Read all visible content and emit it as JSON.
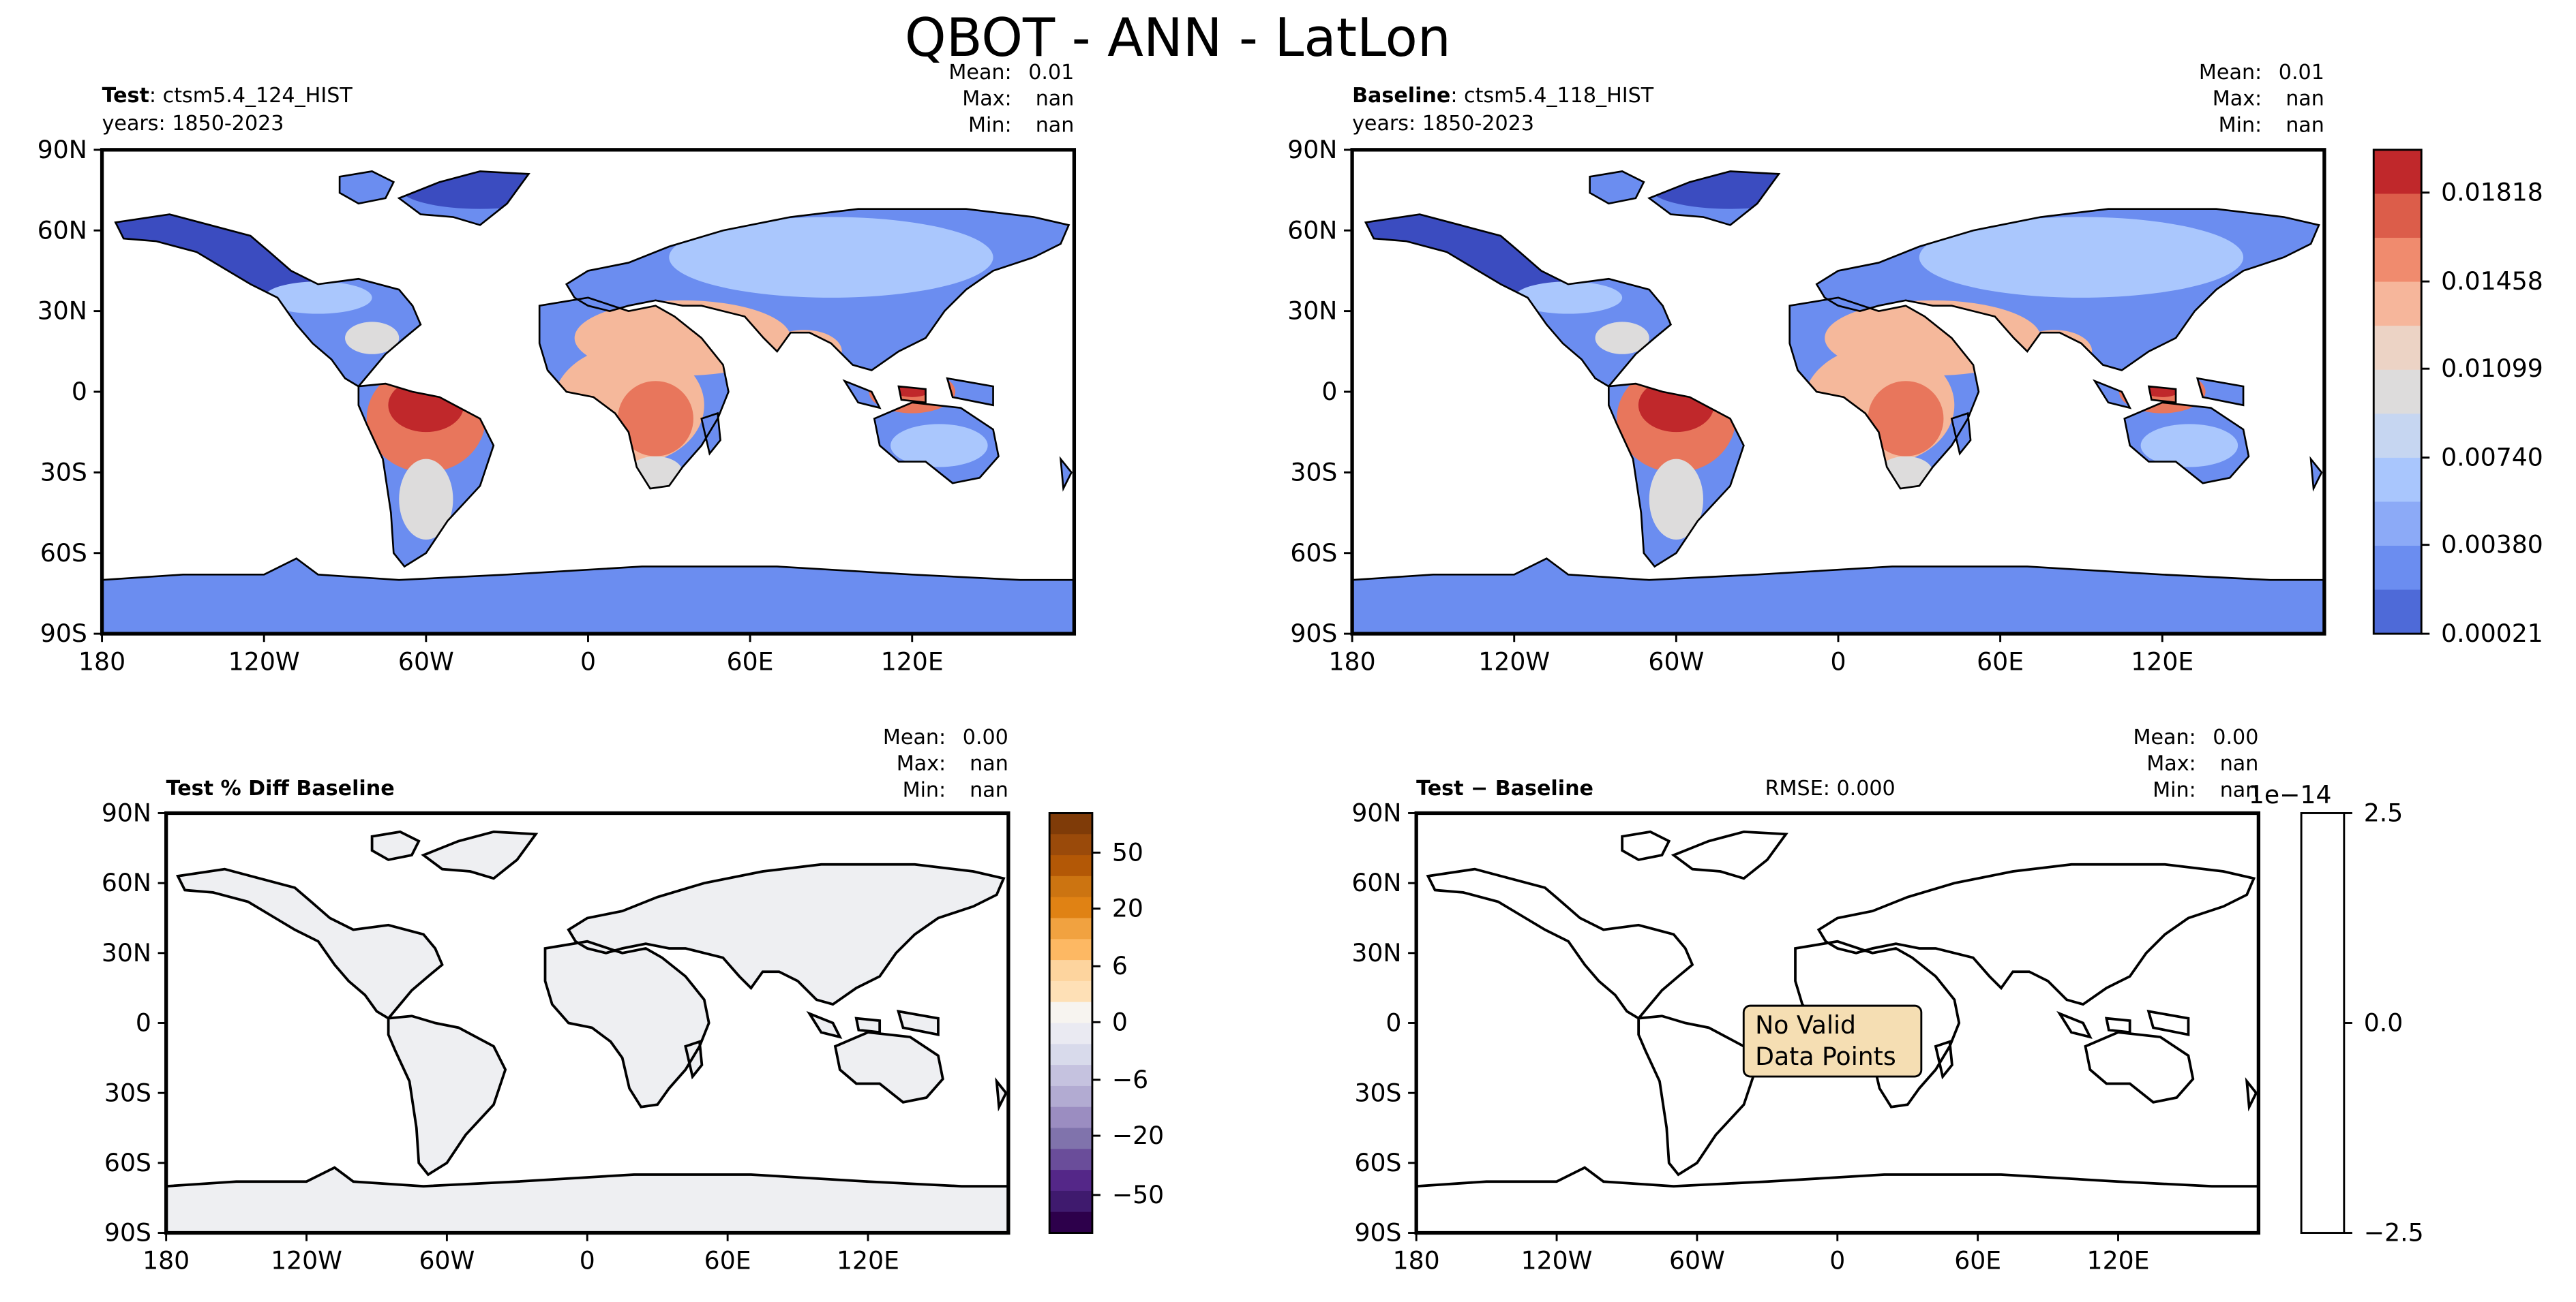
{
  "figure": {
    "title": "QBOT - ANN - LatLon"
  },
  "colors": {
    "land_blue_low": "#3b4cc0",
    "land_blue": "#6b8df0",
    "land_light_blue": "#aac7fd",
    "land_grey": "#dddcdc",
    "land_peach": "#f5b89b",
    "land_orange": "#e8765c",
    "land_red": "#c0282b",
    "diff_land": "#eeeff2",
    "no_data_box": "#f5deb3"
  },
  "chart_data": [
    {
      "type": "heatmap",
      "panel": "test",
      "label_bold": "Test",
      "label_rest": ": ctsm5.4_124_HIST",
      "years": "years: 1850-2023",
      "stats": {
        "mean_label": "Mean:",
        "mean": "0.01",
        "max_label": "Max:",
        "max": "nan",
        "min_label": "Min:",
        "min": "nan"
      },
      "lat_ticks": [
        "90N",
        "60N",
        "30N",
        "0",
        "30S",
        "60S",
        "90S"
      ],
      "lon_ticks": [
        "180",
        "120W",
        "60W",
        "0",
        "60E",
        "120E"
      ],
      "xlim": [
        -180,
        180
      ],
      "ylim": [
        -90,
        90
      ],
      "colorbar": {
        "type": "discrete",
        "labels": [
          "0.01818",
          "0.01458",
          "0.01099",
          "0.00740",
          "0.00380",
          "0.00021"
        ],
        "colormap": "coolwarm",
        "shared_with": "baseline"
      },
      "description_values": "QBOT annual mean field over land; values range ~0.00021 to ~0.019; highest in Amazon and tropical Africa / SE Asia"
    },
    {
      "type": "heatmap",
      "panel": "baseline",
      "label_bold": "Baseline",
      "label_rest": ": ctsm5.4_118_HIST",
      "years": "years: 1850-2023",
      "stats": {
        "mean_label": "Mean:",
        "mean": "0.01",
        "max_label": "Max:",
        "max": "nan",
        "min_label": "Min:",
        "min": "nan"
      },
      "lat_ticks": [
        "90N",
        "60N",
        "30N",
        "0",
        "30S",
        "60S",
        "90S"
      ],
      "lon_ticks": [
        "180",
        "120W",
        "60W",
        "0",
        "60E",
        "120E"
      ],
      "xlim": [
        -180,
        180
      ],
      "ylim": [
        -90,
        90
      ]
    },
    {
      "type": "heatmap",
      "panel": "pct-diff",
      "label_bold": "Test % Diff Baseline",
      "stats": {
        "mean_label": "Mean:",
        "mean": "0.00",
        "max_label": "Max:",
        "max": "nan",
        "min_label": "Min:",
        "min": "nan"
      },
      "lat_ticks": [
        "90N",
        "60N",
        "30N",
        "0",
        "30S",
        "60S",
        "90S"
      ],
      "lon_ticks": [
        "180",
        "120W",
        "60W",
        "0",
        "60E",
        "120E"
      ],
      "colorbar": {
        "type": "discrete",
        "labels": [
          "50",
          "20",
          "6",
          "0",
          "−6",
          "−20",
          "−50"
        ],
        "colormap": "PuOr"
      }
    },
    {
      "type": "heatmap",
      "panel": "diff",
      "label_bold": "Test",
      "label_minus": "−",
      "label_rest": "Baseline",
      "rmse": "RMSE: 0.000",
      "stats": {
        "mean_label": "Mean:",
        "mean": "0.00",
        "max_label": "Max:",
        "max": "nan",
        "min_label": "Min:",
        "min": "nan"
      },
      "lat_ticks": [
        "90N",
        "60N",
        "30N",
        "0",
        "30S",
        "60S",
        "90S"
      ],
      "lon_ticks": [
        "180",
        "120W",
        "60W",
        "0",
        "60E",
        "120E"
      ],
      "no_data": [
        "No Valid",
        "Data Points"
      ],
      "colorbar": {
        "labels": [
          "2.5",
          "0.0",
          "−2.5"
        ],
        "offset": "1e−14"
      }
    }
  ]
}
